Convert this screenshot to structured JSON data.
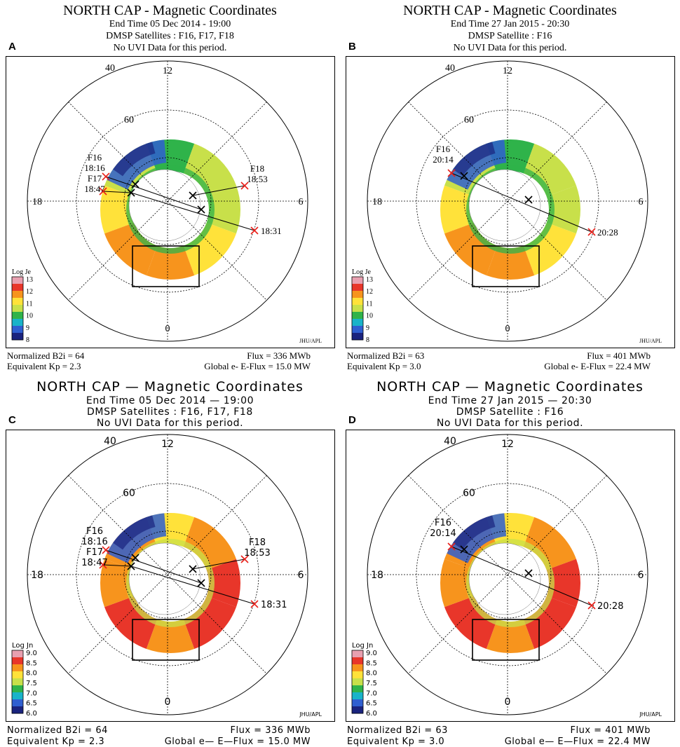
{
  "panels": [
    {
      "id": "A",
      "title": "NORTH CAP - Magnetic Coordinates",
      "subtitle": "End Time 05 Dec 2014 - 19:00",
      "satellites": "DMSP Satellites : F16, F17, F18",
      "uvi_note": "No UVI Data for this period.",
      "letter": "A",
      "labels": {
        "lat40": "40",
        "lat60": "60",
        "mlt12": "12",
        "mlt18": "18",
        "mlt6": "6",
        "mlt0": "0"
      },
      "legend_title": "Log Je",
      "legend_ticks": [
        "13",
        "12",
        "11",
        "10",
        "9",
        "8"
      ],
      "credit": "JHU/APL",
      "tracks": [
        {
          "sat": "F16",
          "time": "18:16"
        },
        {
          "sat": "F17",
          "time": "18:47"
        },
        {
          "sat": "F18",
          "time": "18:53"
        },
        {
          "sat": "",
          "time": "18:31"
        }
      ],
      "footer": {
        "b2i_label": "Normalized B2i =",
        "b2i": "64",
        "kp_label": "Equivalent Kp =",
        "kp": "2.3",
        "flux_label": "Flux =",
        "flux": "336 MWb",
        "eflux_label": "Global e- E-Flux =",
        "eflux": "15.0 MW"
      }
    },
    {
      "id": "B",
      "title": "NORTH CAP - Magnetic Coordinates",
      "subtitle": "End Time 27 Jan 2015 - 20:30",
      "satellites": "DMSP Satellite : F16",
      "uvi_note": "No UVI Data for this period.",
      "letter": "B",
      "labels": {
        "lat40": "40",
        "lat60": "60",
        "mlt12": "12",
        "mlt18": "18",
        "mlt6": "6",
        "mlt0": "0"
      },
      "legend_title": "Log Je",
      "legend_ticks": [
        "13",
        "12",
        "11",
        "10",
        "9",
        "8"
      ],
      "credit": "JHU/APL",
      "tracks": [
        {
          "sat": "F16",
          "time": "20:14"
        },
        {
          "sat": "",
          "time": "20:28"
        }
      ],
      "footer": {
        "b2i_label": "Normalized B2i =",
        "b2i": "63",
        "kp_label": "Equivalent Kp =",
        "kp": "3.0",
        "flux_label": "Flux =",
        "flux": "401 MWb",
        "eflux_label": "Global e- E-Flux =",
        "eflux": "22.4 MW"
      }
    },
    {
      "id": "C",
      "title": "NORTH CAP — Magnetic Coordinates",
      "subtitle": "End Time 05 Dec 2014 — 19:00",
      "satellites": "DMSP Satellites : F16, F17, F18",
      "uvi_note": "No UVI Data for this period.",
      "letter": "C",
      "labels": {
        "lat40": "40",
        "lat60": "60",
        "mlt12": "12",
        "mlt18": "18",
        "mlt6": "6",
        "mlt0": "0"
      },
      "legend_title": "Log Jn",
      "legend_ticks": [
        "9.0",
        "8.5",
        "8.0",
        "7.5",
        "7.0",
        "6.5",
        "6.0"
      ],
      "credit": "JHU/APL",
      "tracks": [
        {
          "sat": "F16",
          "time": "18:16"
        },
        {
          "sat": "F17",
          "time": "18:47"
        },
        {
          "sat": "F18",
          "time": "18:53"
        },
        {
          "sat": "",
          "time": "18:31"
        }
      ],
      "footer": {
        "b2i_label": "Normalized B2i =",
        "b2i": "64",
        "kp_label": "Equivalent Kp  =",
        "kp": "2.3",
        "flux_label": "Flux =",
        "flux": "336 MWb",
        "eflux_label": "Global e— E—Flux =",
        "eflux": "15.0 MW"
      }
    },
    {
      "id": "D",
      "title": "NORTH CAP — Magnetic Coordinates",
      "subtitle": "End Time 27 Jan 2015 — 20:30",
      "satellites": "DMSP Satellite : F16",
      "uvi_note": "No UVI Data for this period.",
      "letter": "D",
      "labels": {
        "lat40": "40",
        "lat60": "60",
        "mlt12": "12",
        "mlt18": "18",
        "mlt6": "6",
        "mlt0": "0"
      },
      "legend_title": "Log Jn",
      "legend_ticks": [
        "9.0",
        "8.5",
        "8.0",
        "7.5",
        "7.0",
        "6.5",
        "6.0"
      ],
      "credit": "JHU/APL",
      "tracks": [
        {
          "sat": "F16",
          "time": "20:14"
        },
        {
          "sat": "",
          "time": "20:28"
        }
      ],
      "footer": {
        "b2i_label": "Normalized B2i =",
        "b2i": "63",
        "kp_label": "Equivalent Kp  =",
        "kp": "3.0",
        "flux_label": "Flux =",
        "flux": "401 MWb",
        "eflux_label": "Global e— E—Flux =",
        "eflux": "22.4 MW"
      }
    }
  ],
  "colors": {
    "deep_blue": "#1a237e",
    "blue": "#2f5fd0",
    "cyan": "#19b3c9",
    "green": "#2fb34a",
    "yellow_green": "#c8e04a",
    "yellow": "#ffe23a",
    "orange": "#f7941d",
    "red": "#e8362a",
    "pink": "#e8a0b0",
    "marker_red": "#e8201a"
  }
}
